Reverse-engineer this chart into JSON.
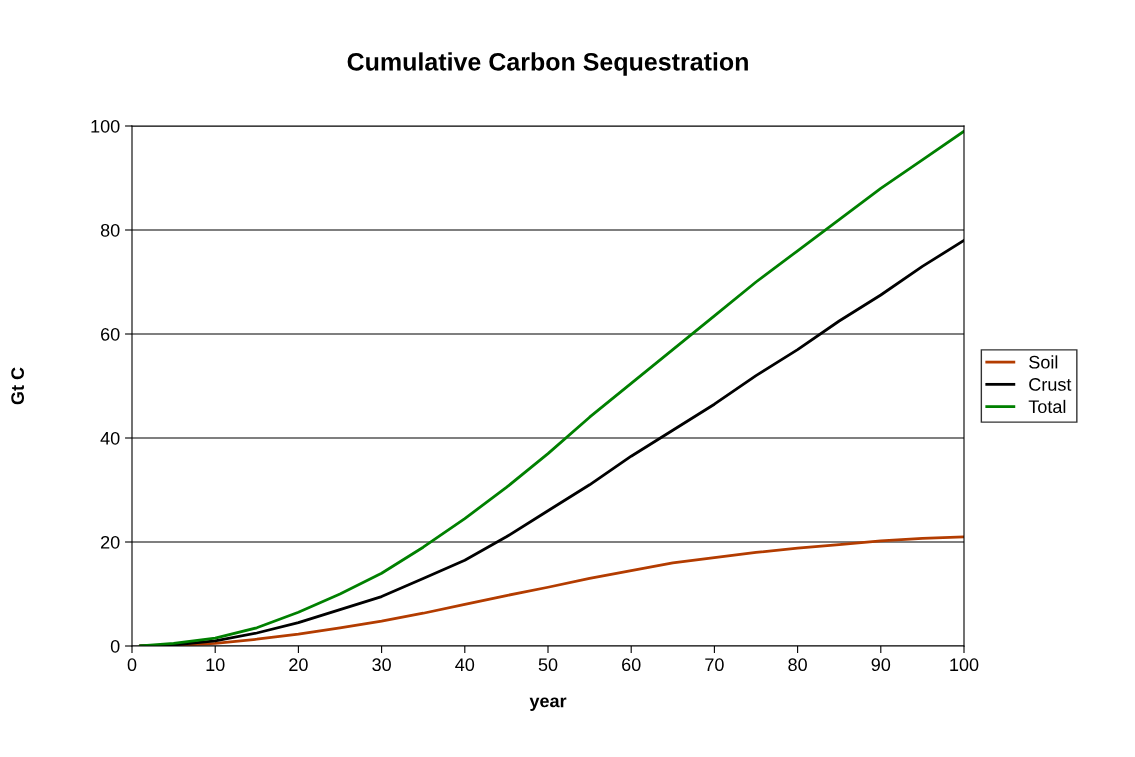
{
  "chart_data": {
    "type": "line",
    "title": "Cumulative Carbon Sequestration",
    "xlabel": "year",
    "ylabel": "Gt C",
    "x": [
      1,
      5,
      10,
      15,
      20,
      25,
      30,
      35,
      40,
      45,
      50,
      55,
      60,
      65,
      70,
      75,
      80,
      85,
      90,
      95,
      100
    ],
    "series": [
      {
        "name": "Soil",
        "color": "#b33c00",
        "values": [
          0,
          0.1,
          0.5,
          1.3,
          2.3,
          3.5,
          4.8,
          6.3,
          8,
          9.7,
          11.3,
          13,
          14.5,
          16,
          17,
          18,
          18.8,
          19.5,
          20.2,
          20.7,
          21
        ]
      },
      {
        "name": "Crust",
        "color": "#000000",
        "values": [
          0,
          0.2,
          1,
          2.5,
          4.5,
          7,
          9.5,
          13,
          16.5,
          21,
          26,
          31,
          36.5,
          41.5,
          46.5,
          52,
          57,
          62.5,
          67.5,
          73,
          78
        ]
      },
      {
        "name": "Total",
        "color": "#008000",
        "values": [
          0,
          0.5,
          1.5,
          3.5,
          6.5,
          10,
          14,
          19,
          24.5,
          30.5,
          37,
          44,
          50.5,
          57,
          63.5,
          70,
          76,
          82,
          88,
          93.5,
          99
        ]
      }
    ],
    "xlim": [
      0,
      100
    ],
    "xticks": [
      0,
      10,
      20,
      30,
      40,
      50,
      60,
      70,
      80,
      90,
      100
    ],
    "ylim": [
      0,
      100
    ],
    "yticks": [
      0,
      20,
      40,
      60,
      80,
      100
    ],
    "grid": "y",
    "legend": "right",
    "marker": "none",
    "line_style": "solid"
  }
}
